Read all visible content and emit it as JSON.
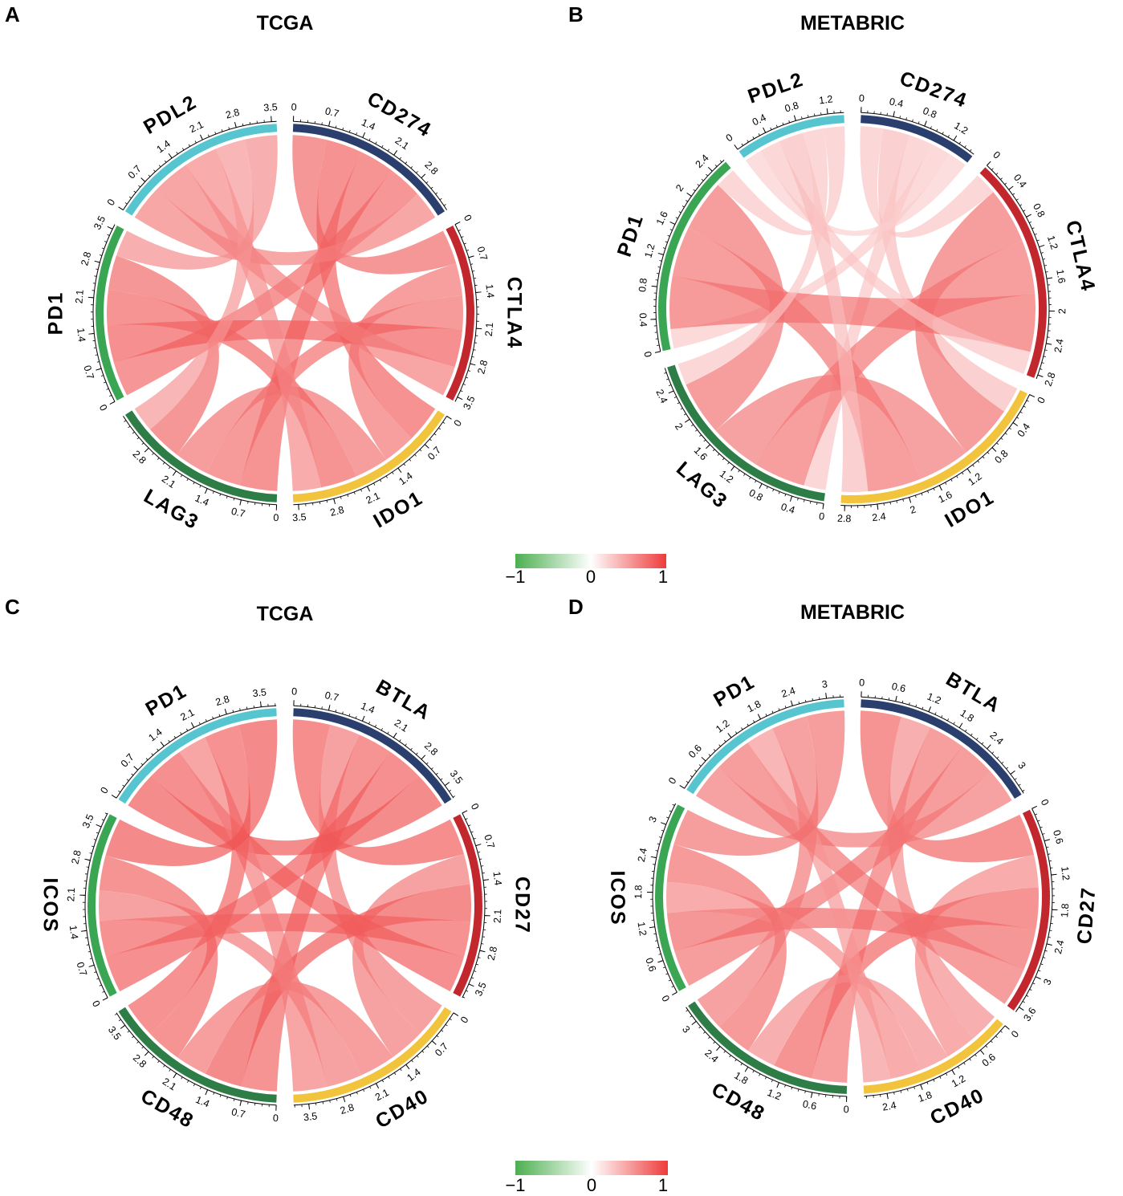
{
  "figure": {
    "colorbar_ticks": [
      "−1",
      "0",
      "1"
    ],
    "colorbar_colors": [
      "#4caf50",
      "#ffffff",
      "#ee3b3b"
    ]
  },
  "chart_data": [
    {
      "panel": "A",
      "title": "TCGA",
      "type": "chord",
      "sectors": [
        {
          "name": "CD274",
          "label": "CD274",
          "color": "#2b3f6e",
          "max": 3.6,
          "ticks": [
            0,
            0.7,
            1.4,
            2.1,
            2.8
          ]
        },
        {
          "name": "CTLA4",
          "label": "CTLA4",
          "color": "#c1272d",
          "max": 3.6,
          "ticks": [
            0,
            0.7,
            1.4,
            2.1,
            2.8,
            3.5
          ]
        },
        {
          "name": "IDO1",
          "label": "IDO1",
          "color": "#f2c43d",
          "max": 3.6,
          "ticks": [
            0,
            0.7,
            1.4,
            2.1,
            2.8,
            3.5
          ]
        },
        {
          "name": "LAG3",
          "label": "LAG3",
          "color": "#2e7d46",
          "max": 3.6,
          "ticks": [
            0,
            0.7,
            1.4,
            2.1,
            2.8
          ]
        },
        {
          "name": "PD1",
          "label": "PD1",
          "color": "#3aa654",
          "max": 3.6,
          "ticks": [
            0,
            0.7,
            1.4,
            2.1,
            2.8,
            3.5
          ]
        },
        {
          "name": "PDL2",
          "label": "PDL2",
          "color": "#56c5d0",
          "max": 3.6,
          "ticks": [
            0,
            0.7,
            1.4,
            2.1,
            2.8,
            3.5
          ]
        }
      ],
      "correlations": [
        {
          "from": "CD274",
          "to": "CTLA4",
          "value": 0.78
        },
        {
          "from": "CD274",
          "to": "IDO1",
          "value": 0.82
        },
        {
          "from": "CD274",
          "to": "LAG3",
          "value": 0.8
        },
        {
          "from": "CD274",
          "to": "PD1",
          "value": 0.79
        },
        {
          "from": "CD274",
          "to": "PDL2",
          "value": 0.66
        },
        {
          "from": "CTLA4",
          "to": "IDO1",
          "value": 0.72
        },
        {
          "from": "CTLA4",
          "to": "LAG3",
          "value": 0.76
        },
        {
          "from": "CTLA4",
          "to": "PD1",
          "value": 0.84
        },
        {
          "from": "CTLA4",
          "to": "PDL2",
          "value": 0.68
        },
        {
          "from": "IDO1",
          "to": "LAG3",
          "value": 0.74
        },
        {
          "from": "IDO1",
          "to": "PD1",
          "value": 0.8
        },
        {
          "from": "IDO1",
          "to": "PDL2",
          "value": 0.62
        },
        {
          "from": "LAG3",
          "to": "PD1",
          "value": 0.78
        },
        {
          "from": "LAG3",
          "to": "PDL2",
          "value": 0.55
        },
        {
          "from": "PD1",
          "to": "PDL2",
          "value": 0.6
        }
      ]
    },
    {
      "panel": "B",
      "title": "METABRIC",
      "type": "chord",
      "sectors": [
        {
          "name": "CD274",
          "label": "CD274",
          "color": "#2b3f6e",
          "max": 1.5,
          "ticks": [
            0,
            0.4,
            0.8,
            1.2
          ]
        },
        {
          "name": "CTLA4",
          "label": "CTLA4",
          "color": "#c1272d",
          "max": 2.85,
          "ticks": [
            0,
            0.4,
            0.8,
            1.2,
            1.6,
            2,
            2.4,
            2.8
          ]
        },
        {
          "name": "IDO1",
          "label": "IDO1",
          "color": "#f2c43d",
          "max": 2.85,
          "ticks": [
            0,
            0.4,
            0.8,
            1.2,
            1.6,
            2,
            2.4,
            2.8
          ]
        },
        {
          "name": "LAG3",
          "label": "LAG3",
          "color": "#2e7d46",
          "max": 2.7,
          "ticks": [
            0,
            0.4,
            0.8,
            1.2,
            1.6,
            2,
            2.4
          ]
        },
        {
          "name": "PD1",
          "label": "PD1",
          "color": "#3aa654",
          "max": 2.6,
          "ticks": [
            0,
            0.4,
            0.8,
            1.2,
            1.6,
            2,
            2.4
          ]
        },
        {
          "name": "PDL2",
          "label": "PDL2",
          "color": "#56c5d0",
          "max": 1.4,
          "ticks": [
            0,
            0.4,
            0.8,
            1.2
          ]
        }
      ],
      "correlations": [
        {
          "from": "CD274",
          "to": "CTLA4",
          "value": 0.3
        },
        {
          "from": "CD274",
          "to": "IDO1",
          "value": 0.35
        },
        {
          "from": "CD274",
          "to": "LAG3",
          "value": 0.3
        },
        {
          "from": "CD274",
          "to": "PD1",
          "value": 0.28
        },
        {
          "from": "CD274",
          "to": "PDL2",
          "value": 0.25
        },
        {
          "from": "CTLA4",
          "to": "IDO1",
          "value": 0.74
        },
        {
          "from": "CTLA4",
          "to": "LAG3",
          "value": 0.72
        },
        {
          "from": "CTLA4",
          "to": "PD1",
          "value": 0.76
        },
        {
          "from": "CTLA4",
          "to": "PDL2",
          "value": 0.3
        },
        {
          "from": "IDO1",
          "to": "LAG3",
          "value": 0.7
        },
        {
          "from": "IDO1",
          "to": "PD1",
          "value": 0.72
        },
        {
          "from": "IDO1",
          "to": "PDL2",
          "value": 0.35
        },
        {
          "from": "LAG3",
          "to": "PD1",
          "value": 0.74
        },
        {
          "from": "LAG3",
          "to": "PDL2",
          "value": 0.3
        },
        {
          "from": "PD1",
          "to": "PDL2",
          "value": 0.3
        }
      ]
    },
    {
      "panel": "C",
      "title": "TCGA",
      "type": "chord",
      "sectors": [
        {
          "name": "BTLA",
          "label": "BTLA",
          "color": "#2b3f6e",
          "max": 3.8,
          "ticks": [
            0,
            0.7,
            1.4,
            2.1,
            2.8,
            3.5
          ]
        },
        {
          "name": "CD27",
          "label": "CD27",
          "color": "#c1272d",
          "max": 3.8,
          "ticks": [
            0,
            0.7,
            1.4,
            2.1,
            2.8,
            3.5
          ]
        },
        {
          "name": "CD40",
          "label": "CD40",
          "color": "#f2c43d",
          "max": 3.8,
          "ticks": [
            0,
            0.7,
            1.4,
            2.1,
            2.8,
            3.5
          ]
        },
        {
          "name": "CD48",
          "label": "CD48",
          "color": "#2e7d46",
          "max": 3.8,
          "ticks": [
            0,
            0.7,
            1.4,
            2.1,
            2.8,
            3.5
          ]
        },
        {
          "name": "ICOS",
          "label": "ICOS",
          "color": "#3aa654",
          "max": 3.8,
          "ticks": [
            0,
            0.7,
            1.4,
            2.1,
            2.8,
            3.5
          ]
        },
        {
          "name": "PD1",
          "label": "PD1",
          "color": "#56c5d0",
          "max": 3.8,
          "ticks": [
            0,
            0.7,
            1.4,
            2.1,
            2.8,
            3.5
          ]
        }
      ],
      "correlations": [
        {
          "from": "BTLA",
          "to": "CD27",
          "value": 0.85
        },
        {
          "from": "BTLA",
          "to": "CD40",
          "value": 0.7
        },
        {
          "from": "BTLA",
          "to": "CD48",
          "value": 0.8
        },
        {
          "from": "BTLA",
          "to": "ICOS",
          "value": 0.84
        },
        {
          "from": "BTLA",
          "to": "PD1",
          "value": 0.86
        },
        {
          "from": "CD27",
          "to": "CD40",
          "value": 0.7
        },
        {
          "from": "CD27",
          "to": "CD48",
          "value": 0.86
        },
        {
          "from": "CD27",
          "to": "ICOS",
          "value": 0.82
        },
        {
          "from": "CD27",
          "to": "PD1",
          "value": 0.84
        },
        {
          "from": "CD40",
          "to": "CD48",
          "value": 0.72
        },
        {
          "from": "CD40",
          "to": "ICOS",
          "value": 0.7
        },
        {
          "from": "CD40",
          "to": "PD1",
          "value": 0.68
        },
        {
          "from": "CD48",
          "to": "ICOS",
          "value": 0.8
        },
        {
          "from": "CD48",
          "to": "PD1",
          "value": 0.82
        },
        {
          "from": "ICOS",
          "to": "PD1",
          "value": 0.88
        }
      ]
    },
    {
      "panel": "D",
      "title": "METABRIC",
      "type": "chord",
      "sectors": [
        {
          "name": "BTLA",
          "label": "BTLA",
          "color": "#2b3f6e",
          "max": 3.4,
          "ticks": [
            0,
            0.6,
            1.2,
            1.8,
            2.4,
            3
          ]
        },
        {
          "name": "CD27",
          "label": "CD27",
          "color": "#c1272d",
          "max": 3.7,
          "ticks": [
            0,
            0.6,
            1.2,
            1.8,
            2.4,
            3,
            3.6
          ]
        },
        {
          "name": "CD40",
          "label": "CD40",
          "color": "#f2c43d",
          "max": 2.8,
          "ticks": [
            0,
            0.6,
            1.2,
            1.8,
            2.4
          ]
        },
        {
          "name": "CD48",
          "label": "CD48",
          "color": "#2e7d46",
          "max": 3.3,
          "ticks": [
            0,
            0.6,
            1.2,
            1.8,
            2.4,
            3
          ]
        },
        {
          "name": "ICOS",
          "label": "ICOS",
          "color": "#3aa654",
          "max": 3.4,
          "ticks": [
            0,
            0.6,
            1.2,
            1.8,
            2.4,
            3
          ]
        },
        {
          "name": "PD1",
          "label": "PD1",
          "color": "#56c5d0",
          "max": 3.3,
          "ticks": [
            0,
            0.6,
            1.2,
            1.8,
            2.4,
            3
          ]
        }
      ],
      "correlations": [
        {
          "from": "BTLA",
          "to": "CD27",
          "value": 0.8
        },
        {
          "from": "BTLA",
          "to": "CD40",
          "value": 0.6
        },
        {
          "from": "BTLA",
          "to": "CD48",
          "value": 0.72
        },
        {
          "from": "BTLA",
          "to": "ICOS",
          "value": 0.74
        },
        {
          "from": "BTLA",
          "to": "PD1",
          "value": 0.7
        },
        {
          "from": "CD27",
          "to": "CD40",
          "value": 0.62
        },
        {
          "from": "CD27",
          "to": "CD48",
          "value": 0.8
        },
        {
          "from": "CD27",
          "to": "ICOS",
          "value": 0.78
        },
        {
          "from": "CD27",
          "to": "PD1",
          "value": 0.74
        },
        {
          "from": "CD40",
          "to": "CD48",
          "value": 0.6
        },
        {
          "from": "CD40",
          "to": "ICOS",
          "value": 0.62
        },
        {
          "from": "CD40",
          "to": "PD1",
          "value": 0.55
        },
        {
          "from": "CD48",
          "to": "ICOS",
          "value": 0.76
        },
        {
          "from": "CD48",
          "to": "PD1",
          "value": 0.7
        },
        {
          "from": "ICOS",
          "to": "PD1",
          "value": 0.74
        }
      ]
    }
  ]
}
